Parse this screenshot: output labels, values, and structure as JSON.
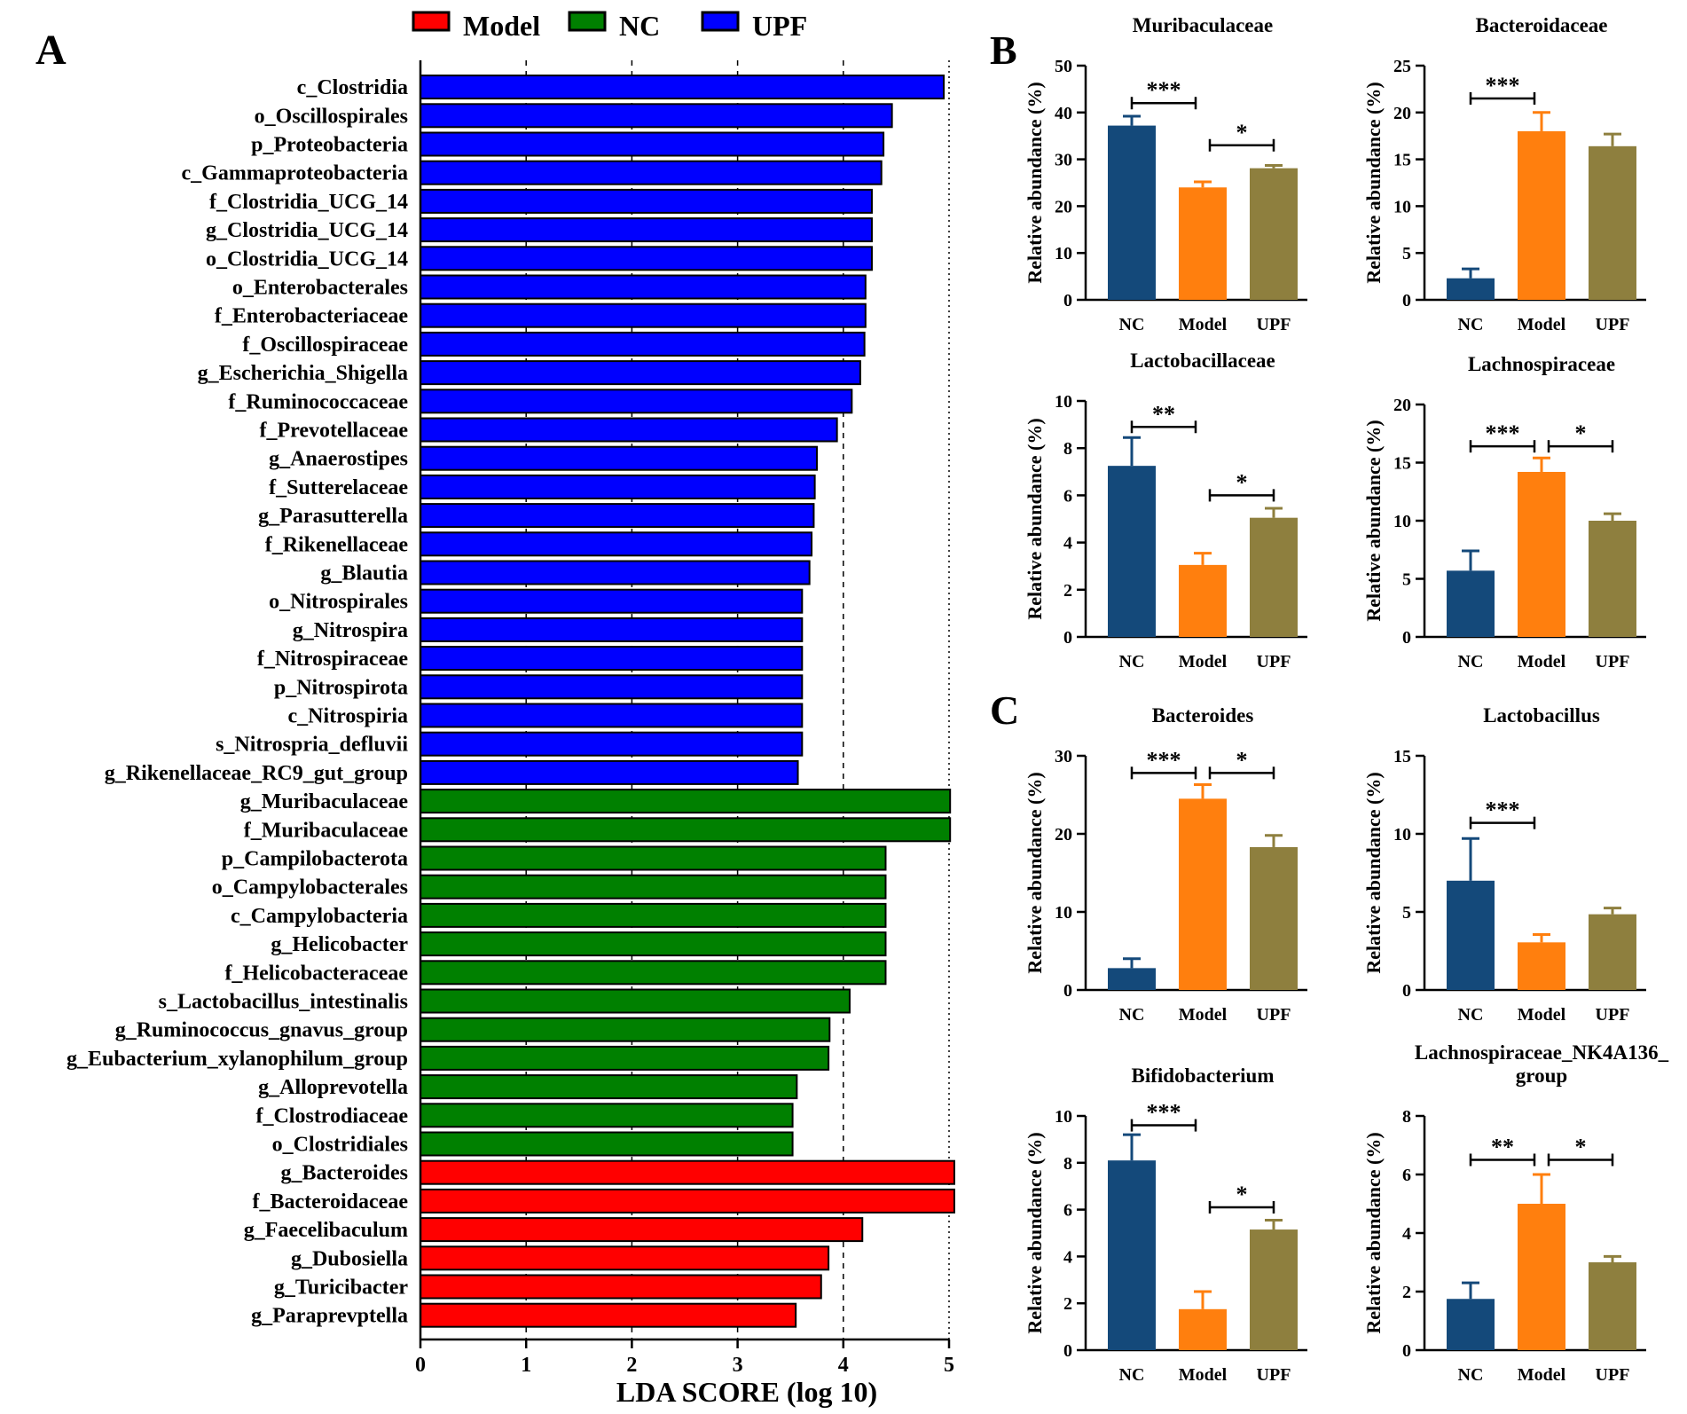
{
  "panel_labels": {
    "a": "A",
    "b": "B",
    "c": "C"
  },
  "colors": {
    "Model": "#ff0000",
    "NC": "#008000",
    "UPF": "#0000ff",
    "bar_nc": "#14497a",
    "bar_model": "#ff7f0e",
    "bar_upf": "#8e7f3e"
  },
  "chart_data": [
    {
      "id": "lda",
      "type": "bar",
      "orientation": "horizontal",
      "xlabel": "LDA SCORE (log 10)",
      "xlim": [
        0,
        5
      ],
      "xticks": [
        0,
        1,
        2,
        3,
        4,
        5
      ],
      "legend": [
        {
          "name": "Model",
          "color": "#ff0000"
        },
        {
          "name": "NC",
          "color": "#008000"
        },
        {
          "name": "UPF",
          "color": "#0000ff"
        }
      ],
      "legend_position": "top",
      "bars": [
        {
          "label": "c_Clostridia",
          "value": 4.95,
          "group": "UPF"
        },
        {
          "label": "o_Oscillospirales",
          "value": 4.46,
          "group": "UPF"
        },
        {
          "label": "p_Proteobacteria",
          "value": 4.38,
          "group": "UPF"
        },
        {
          "label": "c_Gammaproteobacteria",
          "value": 4.36,
          "group": "UPF"
        },
        {
          "label": "f_Clostridia_UCG_14",
          "value": 4.27,
          "group": "UPF"
        },
        {
          "label": "g_Clostridia_UCG_14",
          "value": 4.27,
          "group": "UPF"
        },
        {
          "label": "o_Clostridia_UCG_14",
          "value": 4.27,
          "group": "UPF"
        },
        {
          "label": "o_Enterobacterales",
          "value": 4.21,
          "group": "UPF"
        },
        {
          "label": "f_Enterobacteriaceae",
          "value": 4.21,
          "group": "UPF"
        },
        {
          "label": "f_Oscillospiraceae",
          "value": 4.2,
          "group": "UPF"
        },
        {
          "label": "g_Escherichia_Shigella",
          "value": 4.16,
          "group": "UPF"
        },
        {
          "label": "f_Ruminococcaceae",
          "value": 4.08,
          "group": "UPF"
        },
        {
          "label": "f_Prevotellaceae",
          "value": 3.94,
          "group": "UPF"
        },
        {
          "label": "g_Anaerostipes",
          "value": 3.75,
          "group": "UPF"
        },
        {
          "label": "f_Sutterelaceae",
          "value": 3.73,
          "group": "UPF"
        },
        {
          "label": "g_Parasutterella",
          "value": 3.72,
          "group": "UPF"
        },
        {
          "label": "f_Rikenellaceae",
          "value": 3.7,
          "group": "UPF"
        },
        {
          "label": "g_Blautia",
          "value": 3.68,
          "group": "UPF"
        },
        {
          "label": "o_Nitrospirales",
          "value": 3.61,
          "group": "UPF"
        },
        {
          "label": "g_Nitrospira",
          "value": 3.61,
          "group": "UPF"
        },
        {
          "label": "f_Nitrospiraceae",
          "value": 3.61,
          "group": "UPF"
        },
        {
          "label": "p_Nitrospirota",
          "value": 3.61,
          "group": "UPF"
        },
        {
          "label": "c_Nitrospiria",
          "value": 3.61,
          "group": "UPF"
        },
        {
          "label": "s_Nitrospria_defluvii",
          "value": 3.61,
          "group": "UPF"
        },
        {
          "label": "g_Rikenellaceae_RC9_gut_group",
          "value": 3.57,
          "group": "UPF"
        },
        {
          "label": "g_Muribaculaceae",
          "value": 5.01,
          "group": "NC"
        },
        {
          "label": "f_Muribaculaceae",
          "value": 5.01,
          "group": "NC"
        },
        {
          "label": "p_Campilobacterota",
          "value": 4.4,
          "group": "NC"
        },
        {
          "label": "o_Campylobacterales",
          "value": 4.4,
          "group": "NC"
        },
        {
          "label": "c_Campylobacteria",
          "value": 4.4,
          "group": "NC"
        },
        {
          "label": "g_Helicobacter",
          "value": 4.4,
          "group": "NC"
        },
        {
          "label": "f_Helicobacteraceae",
          "value": 4.4,
          "group": "NC"
        },
        {
          "label": "s_Lactobacillus_intestinalis",
          "value": 4.06,
          "group": "NC"
        },
        {
          "label": "g_Ruminococcus_gnavus_group",
          "value": 3.87,
          "group": "NC"
        },
        {
          "label": "g_Eubacterium_xylanophilum_group",
          "value": 3.86,
          "group": "NC"
        },
        {
          "label": "g_Alloprevotella",
          "value": 3.56,
          "group": "NC"
        },
        {
          "label": "f_Clostrodiaceae",
          "value": 3.52,
          "group": "NC"
        },
        {
          "label": "o_Clostridiales",
          "value": 3.52,
          "group": "NC"
        },
        {
          "label": "g_Bacteroides",
          "value": 5.05,
          "group": "Model"
        },
        {
          "label": "f_Bacteroidaceae",
          "value": 5.05,
          "group": "Model"
        },
        {
          "label": "g_Faecelibaculum",
          "value": 4.18,
          "group": "Model"
        },
        {
          "label": "g_Dubosiella",
          "value": 3.86,
          "group": "Model"
        },
        {
          "label": "g_Turicibacter",
          "value": 3.79,
          "group": "Model"
        },
        {
          "label": "g_Paraprevptella",
          "value": 3.55,
          "group": "Model"
        }
      ]
    },
    {
      "id": "muribaculaceae",
      "type": "bar",
      "title": [
        "Muribaculaceae"
      ],
      "ylabel": "Relative abundance (%)",
      "ylim": [
        0,
        50
      ],
      "yticks": [
        0,
        10,
        20,
        30,
        40,
        50
      ],
      "categories": [
        "NC",
        "Model",
        "UPF"
      ],
      "values": [
        37.2,
        24.0,
        28.1
      ],
      "errors": [
        2.0,
        1.2,
        0.6
      ],
      "significance": [
        {
          "from": 0,
          "to": 1,
          "label": "***",
          "y": 42
        },
        {
          "from": 1,
          "to": 2,
          "label": "*",
          "y": 33
        }
      ]
    },
    {
      "id": "bacteroidaceae",
      "type": "bar",
      "title": [
        "Bacteroidaceae"
      ],
      "ylabel": "Relative abundance (%)",
      "ylim": [
        0,
        25
      ],
      "yticks": [
        0,
        5,
        10,
        15,
        20,
        25
      ],
      "categories": [
        "NC",
        "Model",
        "UPF"
      ],
      "values": [
        2.3,
        18.0,
        16.4
      ],
      "errors": [
        1.0,
        2.0,
        1.3
      ],
      "significance": [
        {
          "from": 0,
          "to": 1,
          "label": "***",
          "y": 21.5
        }
      ]
    },
    {
      "id": "lactobacillaceae",
      "type": "bar",
      "title": [
        "Lactobacillaceae"
      ],
      "ylabel": "Relative abundance (%)",
      "ylim": [
        0,
        10
      ],
      "yticks": [
        0,
        2,
        4,
        6,
        8,
        10
      ],
      "categories": [
        "NC",
        "Model",
        "UPF"
      ],
      "values": [
        7.25,
        3.05,
        5.05
      ],
      "errors": [
        1.2,
        0.5,
        0.4
      ],
      "significance": [
        {
          "from": 0,
          "to": 1,
          "label": "**",
          "y": 8.9
        },
        {
          "from": 1,
          "to": 2,
          "label": "*",
          "y": 6.0
        }
      ]
    },
    {
      "id": "lachnospiraceae",
      "type": "bar",
      "title": [
        "Lachnospiraceae"
      ],
      "ylabel": "Relative abundance (%)",
      "ylim": [
        0,
        20
      ],
      "yticks": [
        0,
        5,
        10,
        15,
        20
      ],
      "categories": [
        "NC",
        "Model",
        "UPF"
      ],
      "values": [
        5.7,
        14.2,
        10.0
      ],
      "errors": [
        1.7,
        1.2,
        0.6
      ],
      "significance": [
        {
          "from": 0,
          "to": 1,
          "label": "***",
          "y": 16.4
        },
        {
          "from": 1,
          "to": 2,
          "label": "*",
          "y": 16.4
        }
      ]
    },
    {
      "id": "bacteroides",
      "type": "bar",
      "title": [
        "Bacteroides"
      ],
      "ylabel": "Relative abundance (%)",
      "ylim": [
        0,
        30
      ],
      "yticks": [
        0,
        10,
        20,
        30
      ],
      "categories": [
        "NC",
        "Model",
        "UPF"
      ],
      "values": [
        2.8,
        24.5,
        18.3
      ],
      "errors": [
        1.2,
        1.8,
        1.5
      ],
      "significance": [
        {
          "from": 0,
          "to": 1,
          "label": "***",
          "y": 27.8
        },
        {
          "from": 1,
          "to": 2,
          "label": "*",
          "y": 27.8
        }
      ]
    },
    {
      "id": "lactobacillus",
      "type": "bar",
      "title": [
        "Lactobacillus"
      ],
      "ylabel": "Relative abundance (%)",
      "ylim": [
        0,
        15
      ],
      "yticks": [
        0,
        5,
        10,
        15
      ],
      "categories": [
        "NC",
        "Model",
        "UPF"
      ],
      "values": [
        7.0,
        3.05,
        4.85
      ],
      "errors": [
        2.7,
        0.5,
        0.4
      ],
      "significance": [
        {
          "from": 0,
          "to": 1,
          "label": "***",
          "y": 10.7
        }
      ]
    },
    {
      "id": "bifidobacterium",
      "type": "bar",
      "title": [
        "Bifidobacterium"
      ],
      "ylabel": "Relative abundance (%)",
      "ylim": [
        0,
        10
      ],
      "yticks": [
        0,
        2,
        4,
        6,
        8,
        10
      ],
      "categories": [
        "NC",
        "Model",
        "UPF"
      ],
      "values": [
        8.1,
        1.75,
        5.15
      ],
      "errors": [
        1.1,
        0.75,
        0.4
      ],
      "significance": [
        {
          "from": 0,
          "to": 1,
          "label": "***",
          "y": 9.6
        },
        {
          "from": 1,
          "to": 2,
          "label": "*",
          "y": 6.1
        }
      ]
    },
    {
      "id": "nk4a136",
      "type": "bar",
      "title": [
        "Lachnospiraceae_NK4A136_",
        "group"
      ],
      "ylabel": "Relative abundance (%)",
      "ylim": [
        0,
        8
      ],
      "yticks": [
        0,
        2,
        4,
        6,
        8
      ],
      "categories": [
        "NC",
        "Model",
        "UPF"
      ],
      "values": [
        1.75,
        5.0,
        3.0
      ],
      "errors": [
        0.55,
        1.0,
        0.2
      ],
      "significance": [
        {
          "from": 0,
          "to": 1,
          "label": "**",
          "y": 6.5
        },
        {
          "from": 1,
          "to": 2,
          "label": "*",
          "y": 6.5
        }
      ]
    }
  ]
}
